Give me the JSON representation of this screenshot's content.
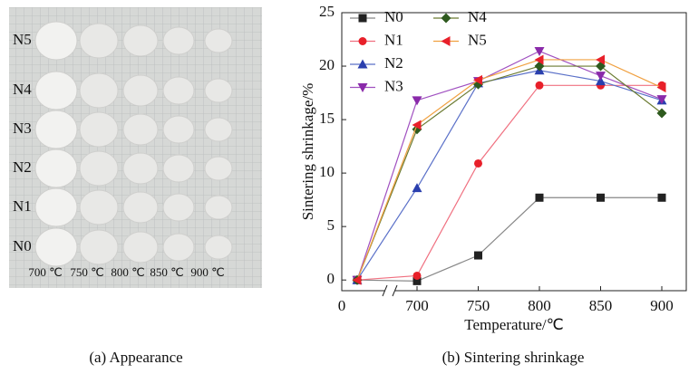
{
  "photo": {
    "rows": [
      "N5",
      "N4",
      "N3",
      "N2",
      "N1",
      "N0"
    ],
    "columns": [
      "700 ℃",
      "750 ℃",
      "800 ℃",
      "850 ℃",
      "900 ℃"
    ],
    "caption": "(a) Appearance"
  },
  "chart_data": {
    "type": "line",
    "caption": "(b) Sintering shrinkage",
    "x_label": "Temperature/℃",
    "y_label": "Sintering shrinkage/%",
    "x": [
      25,
      700,
      750,
      800,
      850,
      900
    ],
    "series": [
      {
        "name": "N0",
        "color": "#222222",
        "line_color": "#888888",
        "marker": "square",
        "values": [
          0,
          -0.1,
          2.3,
          7.7,
          7.7,
          7.7
        ]
      },
      {
        "name": "N1",
        "color": "#e8202a",
        "line_color": "#f07080",
        "marker": "circle",
        "values": [
          0,
          0.4,
          10.9,
          18.2,
          18.2,
          18.2
        ]
      },
      {
        "name": "N2",
        "color": "#2a3fae",
        "line_color": "#5a70c8",
        "marker": "triangle-up",
        "values": [
          0,
          8.6,
          18.4,
          19.6,
          18.6,
          16.8
        ]
      },
      {
        "name": "N3",
        "color": "#8a2aaa",
        "line_color": "#a050c0",
        "marker": "triangle-down",
        "values": [
          0,
          16.8,
          18.6,
          21.4,
          19.1,
          16.9
        ]
      },
      {
        "name": "N4",
        "color": "#2e5a1e",
        "line_color": "#6a7a30",
        "marker": "diamond",
        "values": [
          0,
          14.1,
          18.3,
          20.0,
          20.0,
          15.6
        ]
      },
      {
        "name": "N5",
        "color": "#e8202a",
        "line_color": "#f0a040",
        "marker": "triangle-left",
        "values": [
          0,
          14.5,
          18.7,
          20.6,
          20.6,
          18.0
        ]
      }
    ],
    "xlim": [
      0,
      920
    ],
    "xticks": [
      0,
      700,
      750,
      800,
      850,
      900
    ],
    "ylim": [
      -1,
      25
    ],
    "yticks": [
      0,
      5,
      10,
      15,
      20,
      25
    ]
  }
}
